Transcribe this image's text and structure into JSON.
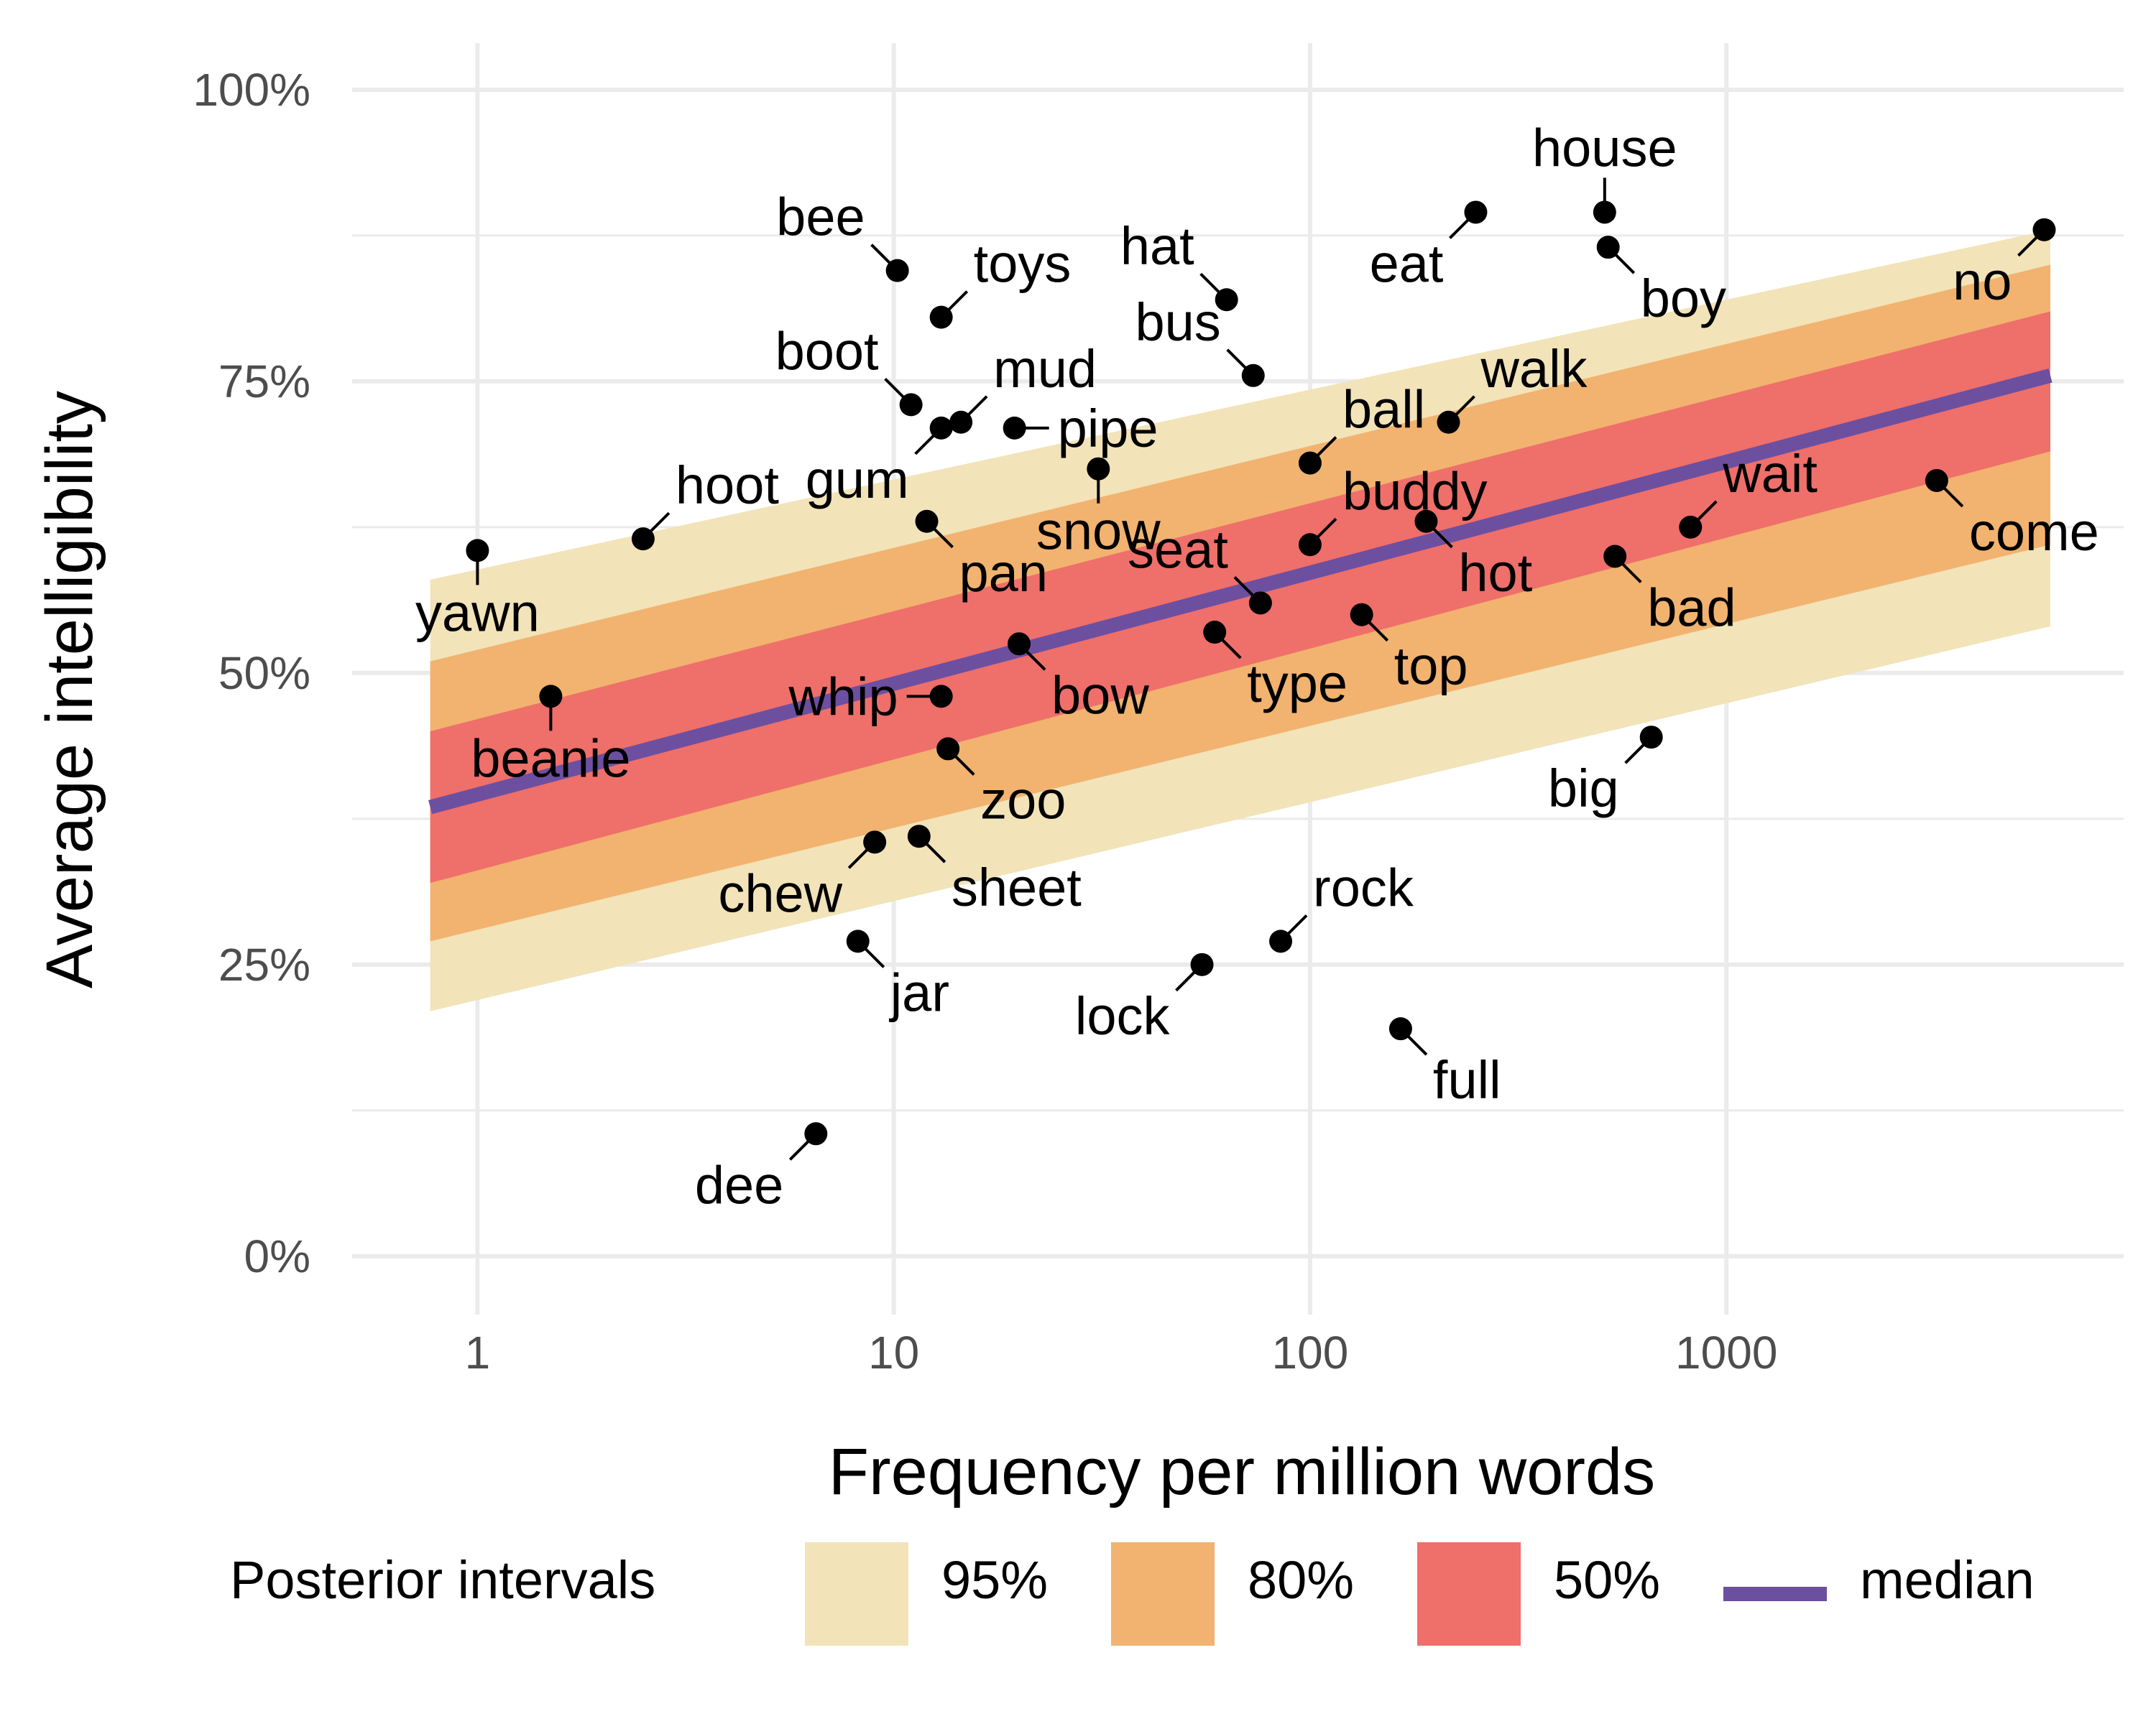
{
  "chart_data": {
    "type": "scatter",
    "xlabel": "Frequency per million words",
    "ylabel": "Average intelligibility",
    "x_scale": "log10",
    "xlim": [
      0.5,
      9000
    ],
    "ylim": [
      -0.05,
      1.04
    ],
    "x_ticks": [
      1,
      10,
      100,
      1000
    ],
    "x_tick_labels": [
      "1",
      "10",
      "100",
      "1000"
    ],
    "y_ticks": [
      0,
      0.25,
      0.5,
      0.75,
      1.0
    ],
    "y_tick_labels": [
      "0%",
      "25%",
      "50%",
      "75%",
      "100%"
    ],
    "grid": true,
    "legend": {
      "position": "bottom",
      "title": "Posterior intervals",
      "items": [
        {
          "label": "95%",
          "color": "#f2e3b9",
          "kind": "fill"
        },
        {
          "label": "80%",
          "color": "#f1b36f",
          "kind": "fill"
        },
        {
          "label": "50%",
          "color": "#ef6f6a",
          "kind": "fill"
        },
        {
          "label": "median",
          "color": "#6d4fa0",
          "kind": "line"
        }
      ]
    },
    "band_x": [
      0.77,
      6000
    ],
    "bands": [
      {
        "interval": "95%",
        "color": "#f2e3b9",
        "lower": [
          0.21,
          0.54
        ],
        "upper": [
          0.58,
          0.88
        ]
      },
      {
        "interval": "80%",
        "color": "#f1b36f",
        "lower": [
          0.27,
          0.61
        ],
        "upper": [
          0.51,
          0.85
        ]
      },
      {
        "interval": "50%",
        "color": "#ef6f6a",
        "lower": [
          0.32,
          0.69
        ],
        "upper": [
          0.45,
          0.81
        ]
      }
    ],
    "median": {
      "color": "#6d4fa0",
      "y": [
        0.385,
        0.755
      ]
    },
    "points": [
      {
        "word": "yawn",
        "x": 1.0,
        "y": 0.605,
        "label_pos": "bottom"
      },
      {
        "word": "beanie",
        "x": 1.5,
        "y": 0.48,
        "label_pos": "bottom"
      },
      {
        "word": "hoot",
        "x": 2.5,
        "y": 0.615,
        "label_pos": "top-right"
      },
      {
        "word": "dee",
        "x": 6.5,
        "y": 0.105,
        "label_pos": "bottom-left"
      },
      {
        "word": "jar",
        "x": 8.2,
        "y": 0.27,
        "label_pos": "bottom-right"
      },
      {
        "word": "chew",
        "x": 9.0,
        "y": 0.355,
        "label_pos": "bottom-left"
      },
      {
        "word": "bee",
        "x": 10.2,
        "y": 0.845,
        "label_pos": "top-left"
      },
      {
        "word": "boot",
        "x": 11.0,
        "y": 0.73,
        "label_pos": "top-left"
      },
      {
        "word": "sheet",
        "x": 11.5,
        "y": 0.36,
        "label_pos": "bottom-right"
      },
      {
        "word": "pan",
        "x": 12.0,
        "y": 0.63,
        "label_pos": "bottom-right"
      },
      {
        "word": "gum",
        "x": 13.0,
        "y": 0.71,
        "label_pos": "bottom-left"
      },
      {
        "word": "toys",
        "x": 13.0,
        "y": 0.805,
        "label_pos": "top-right"
      },
      {
        "word": "whip",
        "x": 13.0,
        "y": 0.48,
        "label_pos": "left"
      },
      {
        "word": "zoo",
        "x": 13.5,
        "y": 0.435,
        "label_pos": "bottom-right"
      },
      {
        "word": "mud",
        "x": 14.5,
        "y": 0.715,
        "label_pos": "top-right"
      },
      {
        "word": "pipe",
        "x": 19.5,
        "y": 0.71,
        "label_pos": "right"
      },
      {
        "word": "bow",
        "x": 20.0,
        "y": 0.525,
        "label_pos": "bottom-right"
      },
      {
        "word": "snow",
        "x": 31.0,
        "y": 0.675,
        "label_pos": "bottom"
      },
      {
        "word": "lock",
        "x": 55.0,
        "y": 0.25,
        "label_pos": "bottom-left"
      },
      {
        "word": "type",
        "x": 59.0,
        "y": 0.535,
        "label_pos": "bottom-right"
      },
      {
        "word": "hat",
        "x": 63.0,
        "y": 0.82,
        "label_pos": "top-left"
      },
      {
        "word": "bus",
        "x": 73.0,
        "y": 0.755,
        "label_pos": "top-left"
      },
      {
        "word": "seat",
        "x": 76.0,
        "y": 0.56,
        "label_pos": "top-left"
      },
      {
        "word": "rock",
        "x": 85.0,
        "y": 0.27,
        "label_pos": "top-right"
      },
      {
        "word": "ball",
        "x": 100.0,
        "y": 0.68,
        "label_pos": "top-right"
      },
      {
        "word": "buddy",
        "x": 100.0,
        "y": 0.61,
        "label_pos": "top-right"
      },
      {
        "word": "top",
        "x": 133.0,
        "y": 0.55,
        "label_pos": "bottom-right"
      },
      {
        "word": "full",
        "x": 165.0,
        "y": 0.195,
        "label_pos": "bottom-right"
      },
      {
        "word": "hot",
        "x": 190.0,
        "y": 0.63,
        "label_pos": "bottom-right"
      },
      {
        "word": "walk",
        "x": 215.0,
        "y": 0.715,
        "label_pos": "top-right"
      },
      {
        "word": "eat",
        "x": 250.0,
        "y": 0.895,
        "label_pos": "bottom-left"
      },
      {
        "word": "house",
        "x": 510.0,
        "y": 0.895,
        "label_pos": "top"
      },
      {
        "word": "boy",
        "x": 520.0,
        "y": 0.865,
        "label_pos": "bottom-right"
      },
      {
        "word": "bad",
        "x": 540.0,
        "y": 0.6,
        "label_pos": "bottom-right"
      },
      {
        "word": "big",
        "x": 660.0,
        "y": 0.445,
        "label_pos": "bottom-left"
      },
      {
        "word": "wait",
        "x": 820.0,
        "y": 0.625,
        "label_pos": "top-right"
      },
      {
        "word": "come",
        "x": 3200.0,
        "y": 0.665,
        "label_pos": "bottom-right"
      },
      {
        "word": "no",
        "x": 5800.0,
        "y": 0.88,
        "label_pos": "bottom-left"
      }
    ]
  }
}
